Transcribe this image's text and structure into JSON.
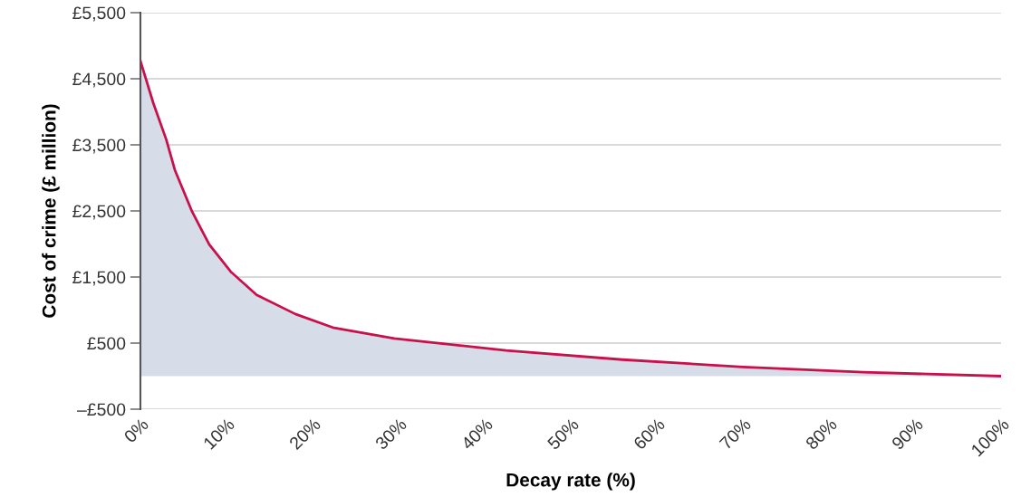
{
  "chart_data": {
    "type": "area",
    "xlabel": "Decay rate (%)",
    "ylabel": "Cost of crime (£ million)",
    "x": [
      0,
      1.5,
      3,
      4,
      6,
      8,
      10.5,
      13.5,
      18,
      22.5,
      29.5,
      42.5,
      56,
      70,
      84,
      100
    ],
    "series": [
      {
        "color": "#c8104a",
        "values": [
          4770,
          4130,
          3580,
          3120,
          2490,
          1990,
          1580,
          1230,
          940,
          730,
          570,
          390,
          250,
          140,
          60,
          0
        ]
      }
    ],
    "xlim": [
      0,
      100
    ],
    "xticks": [
      {
        "value": 0,
        "label": "0%"
      },
      {
        "value": 10,
        "label": "10%"
      },
      {
        "value": 20,
        "label": "20%"
      },
      {
        "value": 30,
        "label": "30%"
      },
      {
        "value": 40,
        "label": "40%"
      },
      {
        "value": 50,
        "label": "50%"
      },
      {
        "value": 60,
        "label": "60%"
      },
      {
        "value": 70,
        "label": "70%"
      },
      {
        "value": 80,
        "label": "80%"
      },
      {
        "value": 90,
        "label": "90%"
      },
      {
        "value": 100,
        "label": "100%"
      }
    ],
    "ylim": [
      -500,
      5500
    ],
    "yticks": [
      {
        "value": -500,
        "label": "–£500"
      },
      {
        "value": 500,
        "label": "£500"
      },
      {
        "value": 1500,
        "label": "£1,500"
      },
      {
        "value": 2500,
        "label": "£2,500"
      },
      {
        "value": 3500,
        "label": "£3,500"
      },
      {
        "value": 4500,
        "label": "£4,500"
      },
      {
        "value": 5500,
        "label": "£5,500"
      }
    ],
    "grid": "y",
    "legend": false
  }
}
